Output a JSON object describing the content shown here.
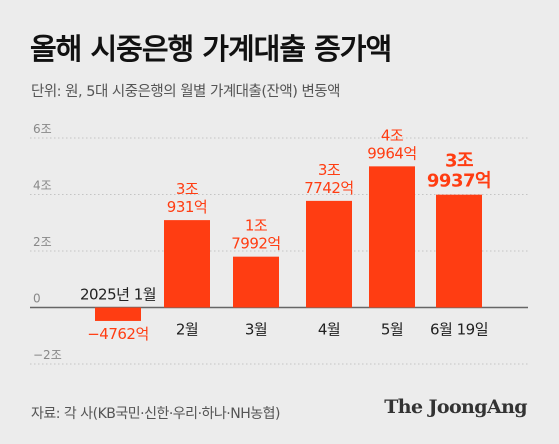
{
  "title": "올해 시중은행 가계대출 증가액",
  "subtitle": "단위: 원, 5대 시중은행의 월별 가계대출(잔액) 변동액",
  "source": "자료: 각 사(KB국민·신한·우리·하나·NH농협)",
  "brand": "The JoongAng",
  "colors": {
    "bar": "#ff3d12",
    "label": "#ff3d12",
    "text": "#222222",
    "axis": "#888888",
    "grid": "#c4c4c4"
  },
  "chart_data": {
    "type": "bar",
    "categories": [
      "2025년 1월",
      "2월",
      "3월",
      "4월",
      "5월",
      "6월 19일"
    ],
    "values": [
      -0.4762,
      3.0931,
      1.7992,
      3.7742,
      4.9964,
      3.9937
    ],
    "value_labels": [
      [
        "−4762억"
      ],
      [
        "3조",
        "931억"
      ],
      [
        "1조",
        "7992억"
      ],
      [
        "3조",
        "7742억"
      ],
      [
        "4조",
        "9964억"
      ],
      [
        "3조",
        "9937억"
      ]
    ],
    "ylim": [
      -2,
      6
    ],
    "yticks": [
      6,
      4,
      2,
      0,
      -2
    ],
    "ytick_labels": [
      "6조",
      "4조",
      "2조",
      "0",
      "−2조"
    ],
    "grid": true,
    "unit": "조"
  }
}
